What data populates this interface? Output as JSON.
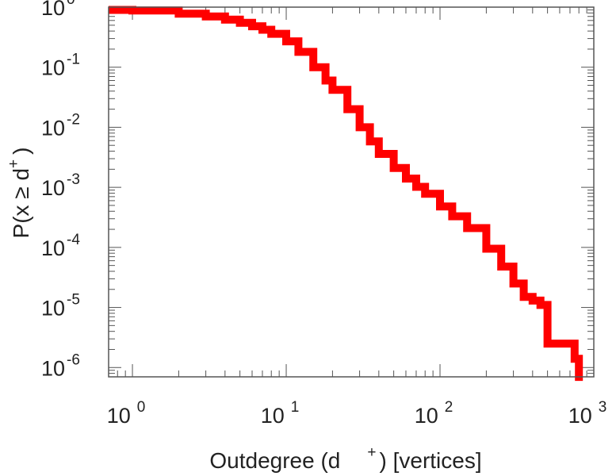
{
  "chart_data": {
    "type": "line",
    "xscale": "log",
    "yscale": "log",
    "xlim": [
      0.7,
      1000
    ],
    "ylim": [
      7e-07,
      1
    ],
    "xlabel": {
      "main": "Outdegree (d",
      "sup": "+",
      "suffix": ") [vertices]"
    },
    "ylabel": {
      "main": "P(x ≥ d",
      "sup": "+",
      "suffix": ")"
    },
    "xticks": [
      {
        "value": 1,
        "base": "10",
        "exp": "0"
      },
      {
        "value": 10,
        "base": "10",
        "exp": "1"
      },
      {
        "value": 100,
        "base": "10",
        "exp": "2"
      },
      {
        "value": 1000,
        "base": "10",
        "exp": "3"
      }
    ],
    "yticks": [
      {
        "value": 1,
        "base": "10",
        "exp": "0"
      },
      {
        "value": 0.1,
        "base": "10",
        "exp": "-1"
      },
      {
        "value": 0.01,
        "base": "10",
        "exp": "-2"
      },
      {
        "value": 0.001,
        "base": "10",
        "exp": "-3"
      },
      {
        "value": 0.0001,
        "base": "10",
        "exp": "-4"
      },
      {
        "value": 1e-05,
        "base": "10",
        "exp": "-5"
      },
      {
        "value": 1e-06,
        "base": "10",
        "exp": "-6"
      }
    ],
    "grid": false,
    "series": [
      {
        "color": "#ff0000",
        "x": [
          0.7,
          1,
          2,
          3,
          4,
          5,
          6,
          7,
          8,
          10,
          12,
          15,
          18,
          20,
          25,
          30,
          35,
          40,
          50,
          60,
          70,
          80,
          100,
          120,
          150,
          200,
          250,
          300,
          350,
          400,
          450,
          500,
          500,
          600,
          700,
          750,
          800
        ],
        "y": [
          0.9,
          0.88,
          0.78,
          0.7,
          0.62,
          0.55,
          0.48,
          0.42,
          0.36,
          0.27,
          0.18,
          0.1,
          0.06,
          0.042,
          0.02,
          0.01,
          0.0058,
          0.0036,
          0.0021,
          0.0014,
          0.00102,
          0.00078,
          0.00048,
          0.00033,
          0.00021,
          9.5e-05,
          4.8e-05,
          2.5e-05,
          1.5e-05,
          1.3e-05,
          1.1e-05,
          8.2e-06,
          2.5e-06,
          2.5e-06,
          2.5e-06,
          1.4e-06,
          6e-07
        ]
      }
    ]
  }
}
